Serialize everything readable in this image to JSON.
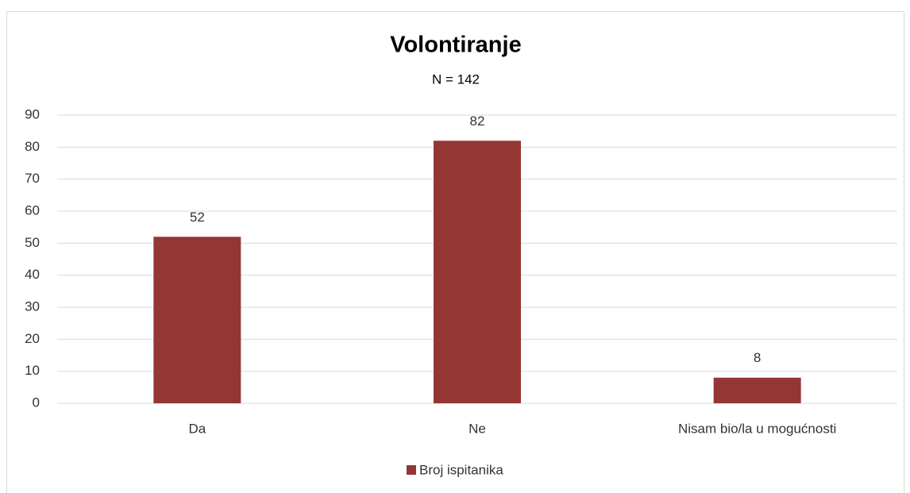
{
  "chart_data": {
    "type": "bar",
    "title": "Volontiranje",
    "subtitle": "N = 142",
    "categories": [
      "Da",
      "Ne",
      "Nisam bio/la u mogućnosti"
    ],
    "series": [
      {
        "name": "Broj ispitanika",
        "color": "#943634",
        "values": [
          52,
          82,
          8
        ]
      }
    ],
    "ylim": [
      0,
      90
    ],
    "yticks": [
      0,
      10,
      20,
      30,
      40,
      50,
      60,
      70,
      80,
      90
    ],
    "grid": true,
    "legend": "bottom"
  }
}
